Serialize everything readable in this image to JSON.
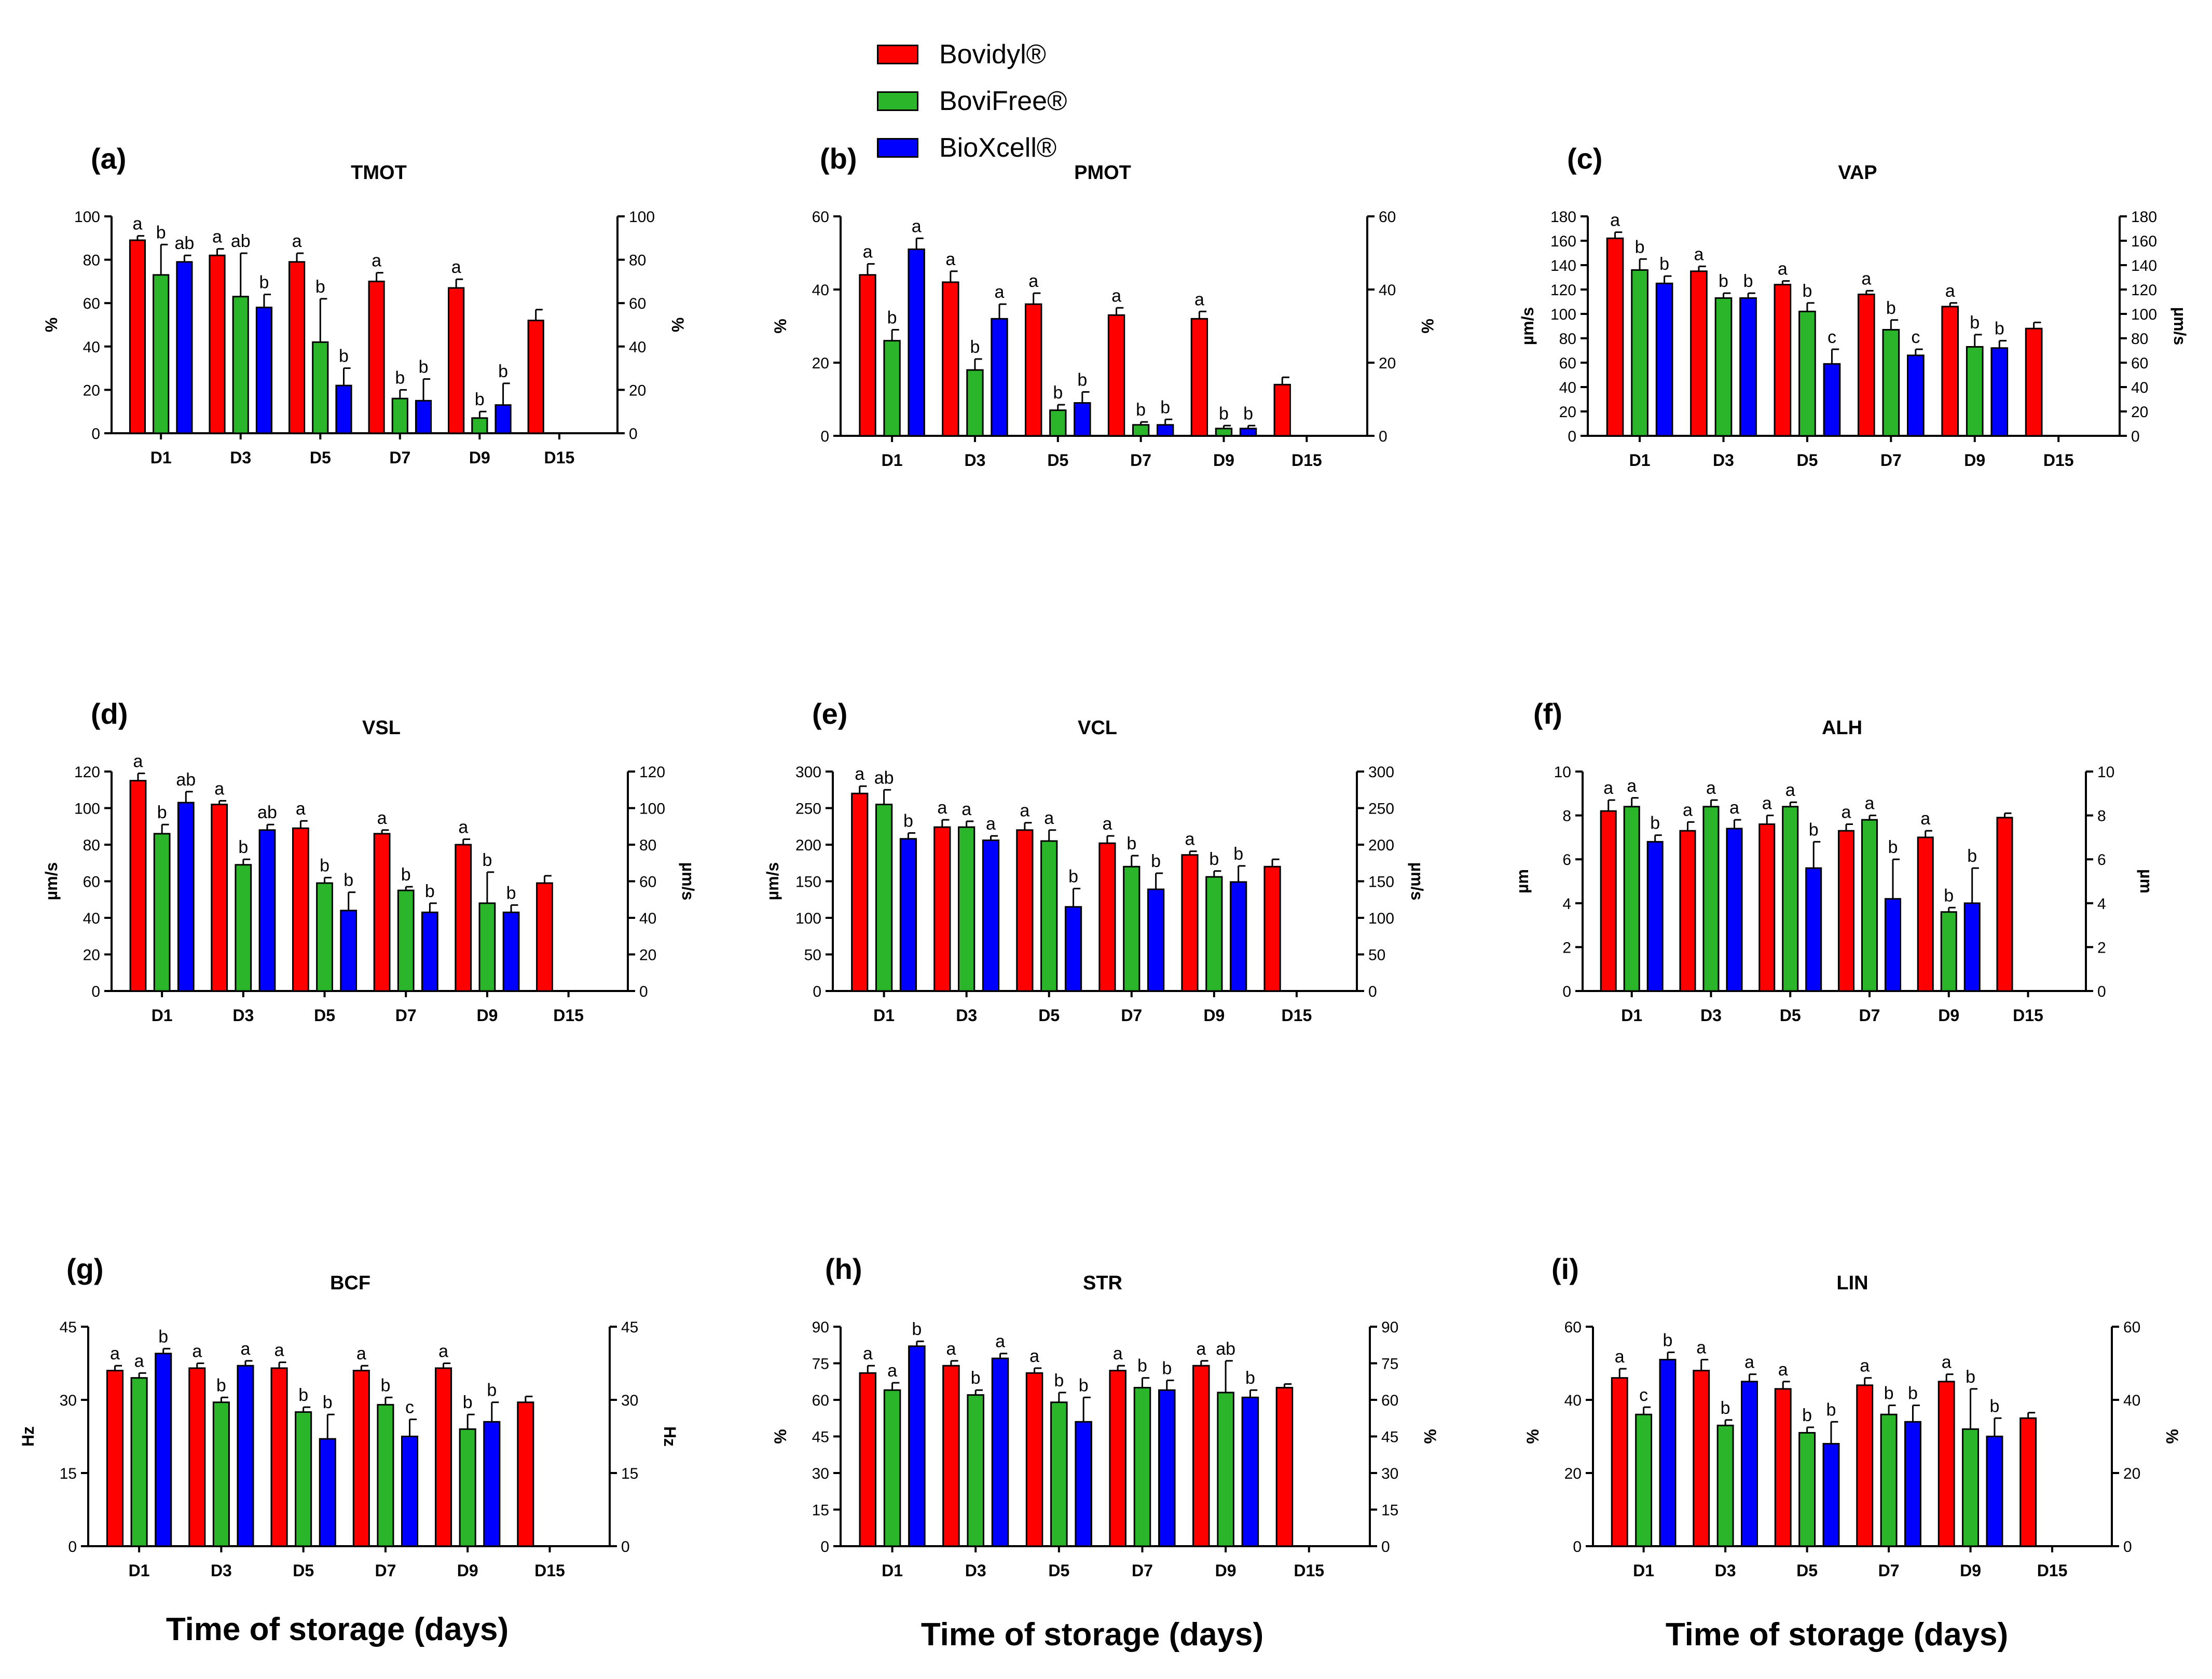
{
  "legend": [
    {
      "name": "Bovidyl®",
      "color": "#ff0000"
    },
    {
      "name": "BoviFree®",
      "color": "#2bb52b"
    },
    {
      "name": "BioXcell®",
      "color": "#0000ff"
    }
  ],
  "x_caption": "Time of storage (days)",
  "chart_data": [
    {
      "panel": "(a)",
      "title": "TMOT",
      "type": "bar",
      "ylabel_left": "%",
      "ylabel_right": "%",
      "ylim": [
        0,
        100
      ],
      "ticks": [
        0,
        20,
        40,
        60,
        80,
        100
      ],
      "categories": [
        "D1",
        "D3",
        "D5",
        "D7",
        "D9",
        "D15"
      ],
      "series": [
        {
          "name": "Bovidyl®",
          "values": [
            89,
            82,
            79,
            70,
            67,
            52
          ],
          "errors": [
            2,
            3,
            4,
            4,
            4,
            5
          ],
          "labels": [
            "a",
            "a",
            "a",
            "a",
            "a",
            ""
          ]
        },
        {
          "name": "BoviFree®",
          "values": [
            73,
            63,
            42,
            16,
            7,
            null
          ],
          "errors": [
            14,
            20,
            20,
            4,
            3,
            null
          ],
          "labels": [
            "b",
            "ab",
            "b",
            "b",
            "b",
            ""
          ]
        },
        {
          "name": "BioXcell®",
          "values": [
            79,
            58,
            22,
            15,
            13,
            null
          ],
          "errors": [
            3,
            6,
            8,
            10,
            10,
            null
          ],
          "labels": [
            "ab",
            "b",
            "b",
            "b",
            "b",
            ""
          ]
        }
      ]
    },
    {
      "panel": "(b)",
      "title": "PMOT",
      "type": "bar",
      "ylabel_left": "%",
      "ylabel_right": "%",
      "ylim": [
        0,
        60
      ],
      "ticks": [
        0,
        20,
        40,
        60
      ],
      "categories": [
        "D1",
        "D3",
        "D5",
        "D7",
        "D9",
        "D15"
      ],
      "series": [
        {
          "name": "Bovidyl®",
          "values": [
            44,
            42,
            36,
            33,
            32,
            14
          ],
          "errors": [
            3,
            3,
            3,
            2,
            2,
            2
          ],
          "labels": [
            "a",
            "a",
            "a",
            "a",
            "a",
            ""
          ]
        },
        {
          "name": "BoviFree®",
          "values": [
            26,
            18,
            7,
            3,
            2,
            null
          ],
          "errors": [
            3,
            3,
            1.5,
            0.8,
            0.8,
            null
          ],
          "labels": [
            "b",
            "b",
            "b",
            "b",
            "b",
            ""
          ]
        },
        {
          "name": "BioXcell®",
          "values": [
            51,
            32,
            9,
            3,
            2,
            null
          ],
          "errors": [
            3,
            4,
            3,
            1.5,
            0.8,
            null
          ],
          "labels": [
            "a",
            "a",
            "b",
            "b",
            "b",
            ""
          ]
        }
      ]
    },
    {
      "panel": "(c)",
      "title": "VAP",
      "type": "bar",
      "ylabel_left": "µm/s",
      "ylabel_right": "µm/s",
      "ylim": [
        0,
        180
      ],
      "ticks": [
        0,
        20,
        40,
        60,
        80,
        100,
        120,
        140,
        160,
        180
      ],
      "categories": [
        "D1",
        "D3",
        "D5",
        "D7",
        "D9",
        "D15"
      ],
      "series": [
        {
          "name": "Bovidyl®",
          "values": [
            162,
            135,
            124,
            116,
            106,
            88
          ],
          "errors": [
            5,
            4,
            3,
            3,
            3,
            5
          ],
          "labels": [
            "a",
            "a",
            "a",
            "a",
            "a",
            ""
          ]
        },
        {
          "name": "BoviFree®",
          "values": [
            136,
            113,
            102,
            87,
            73,
            null
          ],
          "errors": [
            9,
            4,
            7,
            8,
            10,
            null
          ],
          "labels": [
            "b",
            "b",
            "b",
            "b",
            "b",
            ""
          ]
        },
        {
          "name": "BioXcell®",
          "values": [
            125,
            113,
            59,
            66,
            72,
            null
          ],
          "errors": [
            6,
            4,
            12,
            5,
            6,
            null
          ],
          "labels": [
            "b",
            "b",
            "c",
            "c",
            "b",
            ""
          ]
        }
      ]
    },
    {
      "panel": "(d)",
      "title": "VSL",
      "type": "bar",
      "ylabel_left": "µm/s",
      "ylabel_right": "µm/s",
      "ylim": [
        0,
        120
      ],
      "ticks": [
        0,
        20,
        40,
        60,
        80,
        100,
        120
      ],
      "categories": [
        "D1",
        "D3",
        "D5",
        "D7",
        "D9",
        "D15"
      ],
      "series": [
        {
          "name": "Bovidyl®",
          "values": [
            115,
            102,
            89,
            86,
            80,
            59
          ],
          "errors": [
            4,
            2,
            4,
            2,
            3,
            4
          ],
          "labels": [
            "a",
            "a",
            "a",
            "a",
            "a",
            ""
          ]
        },
        {
          "name": "BoviFree®",
          "values": [
            86,
            69,
            59,
            55,
            48,
            null
          ],
          "errors": [
            5,
            3,
            3,
            2,
            17,
            null
          ],
          "labels": [
            "b",
            "b",
            "b",
            "b",
            "b",
            ""
          ]
        },
        {
          "name": "BioXcell®",
          "values": [
            103,
            88,
            44,
            43,
            43,
            null
          ],
          "errors": [
            6,
            3,
            10,
            5,
            4,
            null
          ],
          "labels": [
            "ab",
            "ab",
            "b",
            "b",
            "b",
            ""
          ]
        }
      ]
    },
    {
      "panel": "(e)",
      "title": "VCL",
      "type": "bar",
      "ylabel_left": "µm/s",
      "ylabel_right": "µm/s",
      "ylim": [
        0,
        300
      ],
      "ticks": [
        0,
        50,
        100,
        150,
        200,
        250,
        300
      ],
      "categories": [
        "D1",
        "D3",
        "D5",
        "D7",
        "D9",
        "D15"
      ],
      "series": [
        {
          "name": "Bovidyl®",
          "values": [
            270,
            224,
            220,
            202,
            186,
            170
          ],
          "errors": [
            10,
            10,
            10,
            10,
            5,
            10
          ],
          "labels": [
            "a",
            "a",
            "a",
            "a",
            "a",
            ""
          ]
        },
        {
          "name": "BoviFree®",
          "values": [
            255,
            224,
            205,
            170,
            156,
            null
          ],
          "errors": [
            20,
            8,
            15,
            15,
            8,
            null
          ],
          "labels": [
            "ab",
            "a",
            "a",
            "b",
            "b",
            ""
          ]
        },
        {
          "name": "BioXcell®",
          "values": [
            208,
            206,
            115,
            139,
            149,
            null
          ],
          "errors": [
            8,
            6,
            25,
            22,
            22,
            null
          ],
          "labels": [
            "b",
            "a",
            "b",
            "b",
            "b",
            ""
          ]
        }
      ]
    },
    {
      "panel": "(f)",
      "title": "ALH",
      "type": "bar",
      "ylabel_left": "µm",
      "ylabel_right": "µm",
      "ylim": [
        0,
        10
      ],
      "ticks": [
        0,
        2,
        4,
        6,
        8,
        10
      ],
      "categories": [
        "D1",
        "D3",
        "D5",
        "D7",
        "D9",
        "D15"
      ],
      "series": [
        {
          "name": "Bovidyl®",
          "values": [
            8.2,
            7.3,
            7.6,
            7.3,
            7.0,
            7.9
          ],
          "errors": [
            0.5,
            0.4,
            0.4,
            0.3,
            0.3,
            0.2
          ],
          "labels": [
            "a",
            "a",
            "a",
            "a",
            "a",
            ""
          ]
        },
        {
          "name": "BoviFree®",
          "values": [
            8.4,
            8.4,
            8.4,
            7.8,
            3.6,
            null
          ],
          "errors": [
            0.4,
            0.3,
            0.2,
            0.2,
            0.2,
            null
          ],
          "labels": [
            "a",
            "a",
            "a",
            "a",
            "b",
            ""
          ]
        },
        {
          "name": "BioXcell®",
          "values": [
            6.8,
            7.4,
            5.6,
            4.2,
            4.0,
            null
          ],
          "errors": [
            0.3,
            0.4,
            1.2,
            1.8,
            1.6,
            null
          ],
          "labels": [
            "b",
            "a",
            "b",
            "b",
            "b",
            ""
          ]
        }
      ]
    },
    {
      "panel": "(g)",
      "title": "BCF",
      "type": "bar",
      "ylabel_left": "Hz",
      "ylabel_right": "Hz",
      "ylim": [
        0,
        45
      ],
      "ticks": [
        0,
        15,
        30,
        45
      ],
      "categories": [
        "D1",
        "D3",
        "D5",
        "D7",
        "D9",
        "D15"
      ],
      "series": [
        {
          "name": "Bovidyl®",
          "values": [
            36,
            36.5,
            36.5,
            36,
            36.5,
            29.5
          ],
          "errors": [
            1,
            1,
            1.2,
            1,
            1,
            1.2
          ],
          "labels": [
            "a",
            "a",
            "a",
            "a",
            "a",
            ""
          ]
        },
        {
          "name": "BoviFree®",
          "values": [
            34.5,
            29.5,
            27.5,
            29,
            24,
            null
          ],
          "errors": [
            1,
            1,
            1,
            1.5,
            3,
            null
          ],
          "labels": [
            "a",
            "b",
            "b",
            "b",
            "b",
            ""
          ]
        },
        {
          "name": "BioXcell®",
          "values": [
            39.5,
            37,
            22,
            22.5,
            25.5,
            null
          ],
          "errors": [
            1,
            1,
            5,
            3.5,
            4,
            null
          ],
          "labels": [
            "b",
            "a",
            "b",
            "c",
            "b",
            ""
          ]
        }
      ]
    },
    {
      "panel": "(h)",
      "title": "STR",
      "type": "bar",
      "ylabel_left": "%",
      "ylabel_right": "%",
      "ylim": [
        0,
        90
      ],
      "ticks": [
        0,
        15,
        30,
        45,
        60,
        75,
        90
      ],
      "categories": [
        "D1",
        "D3",
        "D5",
        "D7",
        "D9",
        "D15"
      ],
      "series": [
        {
          "name": "Bovidyl®",
          "values": [
            71,
            74,
            71,
            72,
            74,
            65
          ],
          "errors": [
            3,
            2,
            2,
            2,
            2,
            1.5
          ],
          "labels": [
            "a",
            "a",
            "a",
            "a",
            "a",
            ""
          ]
        },
        {
          "name": "BoviFree®",
          "values": [
            64,
            62,
            59,
            65,
            63,
            null
          ],
          "errors": [
            3,
            2,
            4,
            4,
            13,
            null
          ],
          "labels": [
            "a",
            "b",
            "b",
            "b",
            "ab",
            ""
          ]
        },
        {
          "name": "BioXcell®",
          "values": [
            82,
            77,
            51,
            64,
            61,
            null
          ],
          "errors": [
            2,
            2,
            10,
            4,
            3,
            null
          ],
          "labels": [
            "b",
            "a",
            "b",
            "b",
            "b",
            ""
          ]
        }
      ]
    },
    {
      "panel": "(i)",
      "title": "LIN",
      "type": "bar",
      "ylabel_left": "%",
      "ylabel_right": "%",
      "ylim": [
        0,
        60
      ],
      "ticks": [
        0,
        20,
        40,
        60
      ],
      "categories": [
        "D1",
        "D3",
        "D5",
        "D7",
        "D9",
        "D15"
      ],
      "series": [
        {
          "name": "Bovidyl®",
          "values": [
            46,
            48,
            43,
            44,
            45,
            35
          ],
          "errors": [
            2.5,
            3,
            2,
            2,
            2,
            1.5
          ],
          "labels": [
            "a",
            "a",
            "a",
            "a",
            "a",
            ""
          ]
        },
        {
          "name": "BoviFree®",
          "values": [
            36,
            33,
            31,
            36,
            32,
            null
          ],
          "errors": [
            2,
            1.5,
            1.5,
            2.5,
            11,
            null
          ],
          "labels": [
            "c",
            "b",
            "b",
            "b",
            "b",
            ""
          ]
        },
        {
          "name": "BioXcell®",
          "values": [
            51,
            45,
            28,
            34,
            30,
            null
          ],
          "errors": [
            2,
            2,
            6,
            4.5,
            5,
            null
          ],
          "labels": [
            "b",
            "a",
            "b",
            "b",
            "b",
            ""
          ]
        }
      ]
    }
  ]
}
